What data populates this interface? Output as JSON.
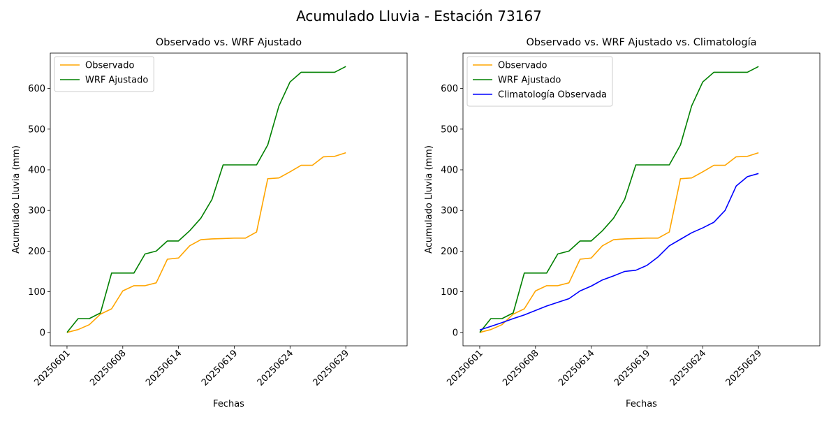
{
  "figure": {
    "suptitle": "Acumulado Lluvia - Estación 73167"
  },
  "chart_data": [
    {
      "type": "line",
      "title": "Observado vs. WRF Ajustado",
      "xlabel": "Fechas",
      "ylabel": "Acumulado Lluvia (mm)",
      "xlim": [
        -1.5,
        30.5
      ],
      "ylim": [
        -33,
        687
      ],
      "yticks": [
        0,
        100,
        200,
        300,
        400,
        500,
        600
      ],
      "xticks": [
        {
          "pos": 0,
          "label": "20250601"
        },
        {
          "pos": 5,
          "label": "20250608"
        },
        {
          "pos": 10,
          "label": "20250614"
        },
        {
          "pos": 15,
          "label": "20250619"
        },
        {
          "pos": 20,
          "label": "20250624"
        },
        {
          "pos": 25,
          "label": "20250629"
        }
      ],
      "grid": false,
      "legend": "top-left",
      "x": [
        0,
        1,
        2,
        3,
        4,
        5,
        6,
        7,
        8,
        9,
        10,
        11,
        12,
        13,
        14,
        15,
        16,
        17,
        18,
        19,
        20,
        21,
        22,
        23,
        24,
        25
      ],
      "series": [
        {
          "name": "Observado",
          "color": "#ffa500",
          "values": [
            0,
            7,
            19,
            45,
            58,
            102,
            115,
            115,
            122,
            180,
            183,
            213,
            228,
            230,
            231,
            232,
            232,
            247,
            378,
            380,
            395,
            411,
            411,
            432,
            433,
            442
          ]
        },
        {
          "name": "WRF Ajustado",
          "color": "#008000",
          "values": [
            0,
            34,
            34,
            48,
            146,
            146,
            146,
            193,
            200,
            225,
            225,
            250,
            281,
            327,
            412,
            412,
            412,
            412,
            461,
            557,
            616,
            640,
            640,
            640,
            640,
            654
          ]
        }
      ]
    },
    {
      "type": "line",
      "title": "Observado vs. WRF Ajustado vs. Climatología",
      "xlabel": "Fechas",
      "ylabel": "Acumulado Lluvia (mm)",
      "xlim": [
        -1.5,
        30.5
      ],
      "ylim": [
        -33,
        687
      ],
      "yticks": [
        0,
        100,
        200,
        300,
        400,
        500,
        600
      ],
      "xticks": [
        {
          "pos": 0,
          "label": "20250601"
        },
        {
          "pos": 5,
          "label": "20250608"
        },
        {
          "pos": 10,
          "label": "20250614"
        },
        {
          "pos": 15,
          "label": "20250619"
        },
        {
          "pos": 20,
          "label": "20250624"
        },
        {
          "pos": 25,
          "label": "20250629"
        }
      ],
      "grid": false,
      "legend": "top-left",
      "x": [
        0,
        1,
        2,
        3,
        4,
        5,
        6,
        7,
        8,
        9,
        10,
        11,
        12,
        13,
        14,
        15,
        16,
        17,
        18,
        19,
        20,
        21,
        22,
        23,
        24,
        25
      ],
      "series": [
        {
          "name": "Observado",
          "color": "#ffa500",
          "values": [
            0,
            7,
            19,
            45,
            58,
            102,
            115,
            115,
            122,
            180,
            183,
            213,
            228,
            230,
            231,
            232,
            232,
            247,
            378,
            380,
            395,
            411,
            411,
            432,
            433,
            442
          ]
        },
        {
          "name": "WRF Ajustado",
          "color": "#008000",
          "values": [
            0,
            34,
            34,
            48,
            146,
            146,
            146,
            193,
            200,
            225,
            225,
            250,
            281,
            327,
            412,
            412,
            412,
            412,
            461,
            557,
            616,
            640,
            640,
            640,
            640,
            654
          ]
        },
        {
          "name": "Climatología Observada",
          "color": "#0000ff",
          "values": [
            6,
            15,
            24,
            34,
            43,
            54,
            65,
            74,
            83,
            102,
            114,
            129,
            139,
            150,
            153,
            165,
            186,
            213,
            229,
            245,
            257,
            271,
            300,
            360,
            383,
            391
          ]
        }
      ]
    }
  ]
}
